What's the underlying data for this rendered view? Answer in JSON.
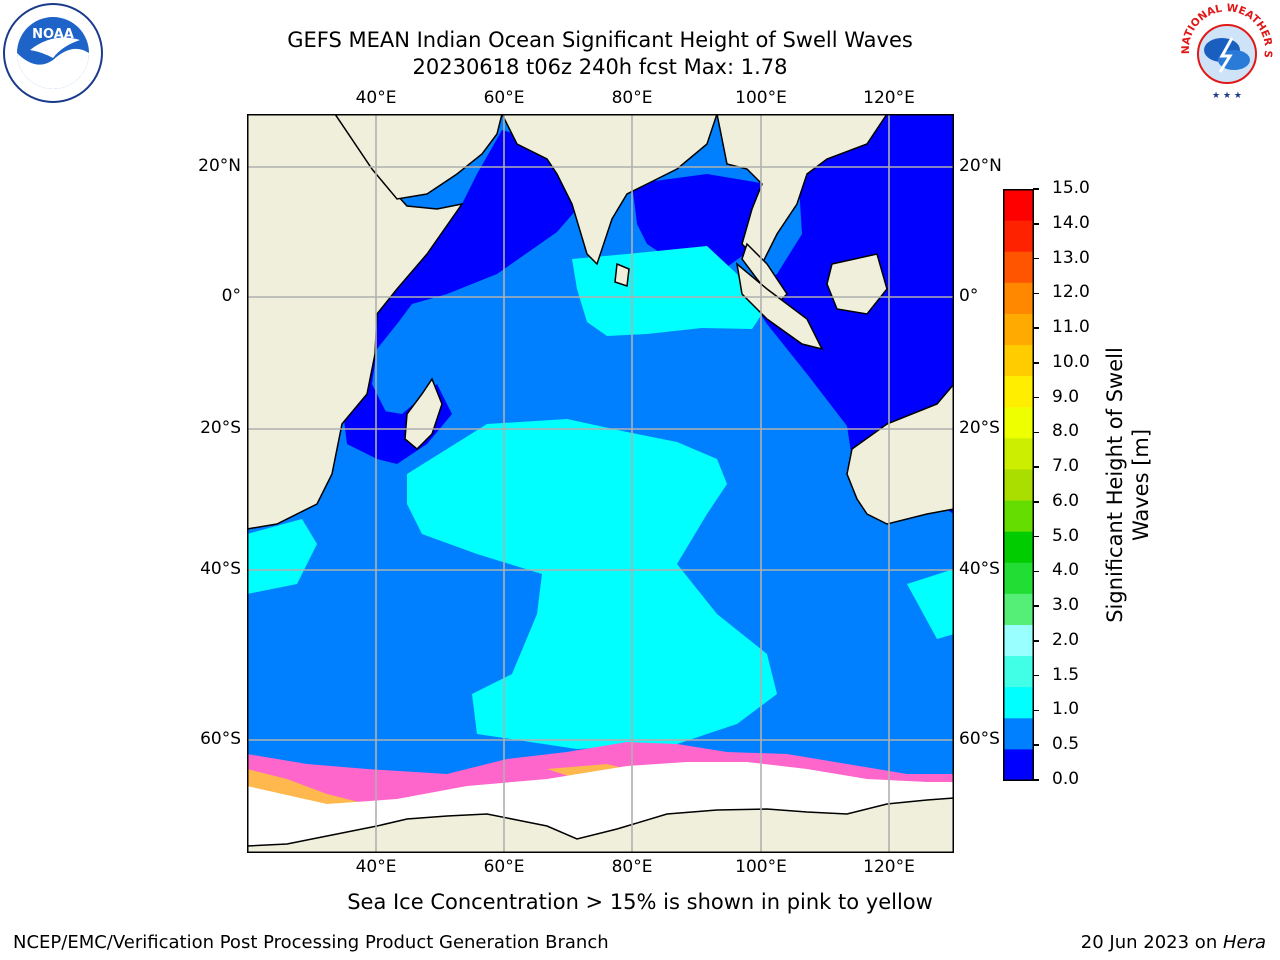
{
  "title": {
    "line1": "GEFS MEAN Indian Ocean Significant Height of Swell Waves",
    "line2": "20230618 t06z 240h fcst   Max: 1.78"
  },
  "map": {
    "lon_labels": [
      "40°E",
      "60°E",
      "80°E",
      "100°E",
      "120°E"
    ],
    "lat_labels": [
      "20°N",
      "0°",
      "20°S",
      "40°S",
      "60°S"
    ],
    "colors": {
      "land": "#efefdc",
      "band_0_05": "#0000ff",
      "band_05_10": "#0080ff",
      "band_10_15": "#00ffff",
      "ice_pink": "#ff66cc",
      "ice_orange": "#ffb84d",
      "antarctic": "#ffffff",
      "grid": "#b0b0b0"
    }
  },
  "colorbar": {
    "ticks": [
      "15.0",
      "14.0",
      "13.0",
      "12.0",
      "11.0",
      "10.0",
      "9.0",
      "8.0",
      "7.0",
      "6.0",
      "5.0",
      "4.0",
      "3.0",
      "2.0",
      "1.5",
      "1.0",
      "0.5",
      "0.0"
    ],
    "colors_bottom_to_top": [
      "#0000ff",
      "#0080ff",
      "#00ffff",
      "#40ffe6",
      "#99ffff",
      "#55ee77",
      "#22dd33",
      "#00cc00",
      "#66dd00",
      "#aadd00",
      "#ccee00",
      "#eeff00",
      "#ffee00",
      "#ffcc00",
      "#ffaa00",
      "#ff8800",
      "#ff5500",
      "#ff2200",
      "#ff0000"
    ],
    "label_line1": "Significant Height of Swell",
    "label_line2": "Waves [m]"
  },
  "caption": "Sea Ice Concentration > 15% is shown in pink to yellow",
  "footer": {
    "left": "NCEP/EMC/Verification Post Processing Product Generation Branch",
    "right_prefix": "20 Jun 2023 on ",
    "right_machine": "Hera"
  },
  "logos": {
    "noaa_text": "NOAA",
    "nws_text": "NATIONAL WEATHER SERVICE"
  }
}
